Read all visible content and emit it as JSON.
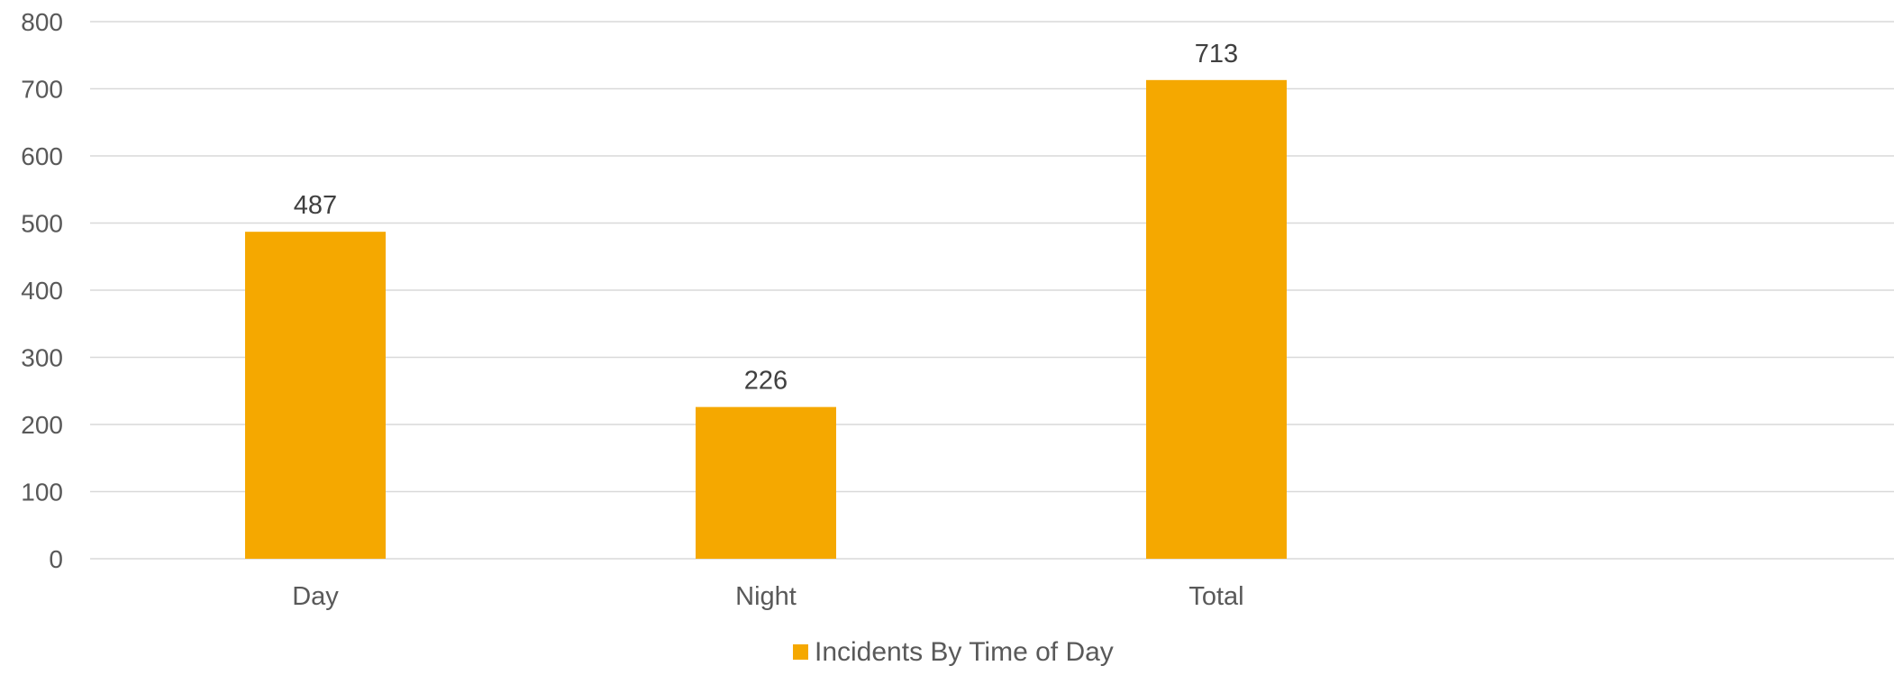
{
  "chart_data": {
    "type": "bar",
    "categories": [
      "Day",
      "Night",
      "Total"
    ],
    "series": [
      {
        "name": "Incidents By Time of Day",
        "values": [
          487,
          226,
          713
        ],
        "color": "#F5A800"
      }
    ],
    "ylim": [
      0,
      800
    ],
    "yticks": [
      0,
      100,
      200,
      300,
      400,
      500,
      600,
      700,
      800
    ],
    "data_labels": true,
    "grid": true,
    "legend_position": "bottom",
    "gridline_color": "#D9D9D9",
    "text_color": "#595959"
  }
}
